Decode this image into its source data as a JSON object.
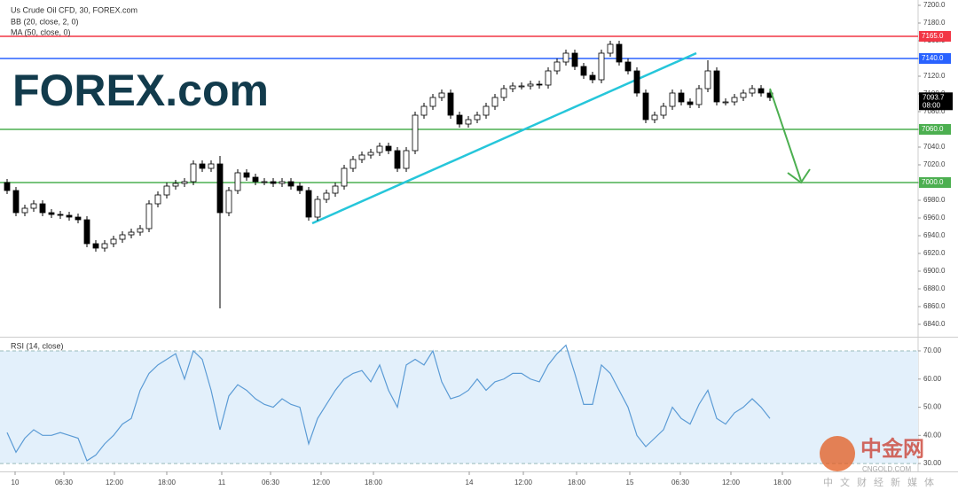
{
  "chart_data": [
    {
      "type": "candlestick",
      "title": "Us Crude Oil CFD, 30, FOREX.com",
      "subtitles": [
        "BB (20, close, 2, 0)",
        "MA (50, close, 0)"
      ],
      "logo": "FOREX.com",
      "up_color": "#ffffff",
      "down_color": "#000000",
      "open": [
        7000,
        6991,
        6966,
        6971,
        6976,
        6966,
        6964,
        6963,
        6961,
        6958,
        6931,
        6926,
        6931,
        6936,
        6941,
        6944,
        6948,
        6976,
        6986,
        6996,
        6999,
        7001,
        7021,
        7016,
        7021,
        6966,
        6991,
        7011,
        7006,
        7001,
        7001,
        6999,
        7001,
        6996,
        6991,
        6961,
        6981,
        6988,
        6996,
        7016,
        7026,
        7031,
        7034,
        7041,
        7036,
        7016,
        7036,
        7076,
        7086,
        7096,
        7101,
        7076,
        7066,
        7071,
        7076,
        7086,
        7096,
        7106,
        7109,
        7109,
        7111,
        7110,
        7126,
        7136,
        7146,
        7131,
        7121,
        7116,
        7146,
        7156,
        7136,
        7126,
        7101,
        7071,
        7076,
        7086,
        7101,
        7091,
        7088,
        7106,
        7126,
        7091,
        7091,
        7096,
        7101,
        7106,
        7101
      ],
      "high": [
        7004,
        6995,
        6975,
        6980,
        6980,
        6970,
        6968,
        6967,
        6965,
        6962,
        6935,
        6935,
        6940,
        6945,
        6948,
        6952,
        6980,
        6990,
        7000,
        7003,
        7005,
        7025,
        7025,
        7025,
        7030,
        6995,
        7015,
        7015,
        7010,
        7005,
        7005,
        7005,
        7005,
        7000,
        6995,
        6985,
        6992,
        7000,
        7020,
        7030,
        7035,
        7038,
        7045,
        7045,
        7040,
        7040,
        7080,
        7090,
        7100,
        7105,
        7105,
        7080,
        7075,
        7080,
        7090,
        7100,
        7110,
        7113,
        7113,
        7115,
        7115,
        7130,
        7140,
        7150,
        7150,
        7135,
        7125,
        7150,
        7160,
        7160,
        7140,
        7130,
        7105,
        7080,
        7090,
        7105,
        7105,
        7095,
        7110,
        7138,
        7130,
        7095,
        7100,
        7105,
        7110,
        7110,
        7105
      ],
      "low": [
        6987,
        6962,
        6962,
        6967,
        6962,
        6960,
        6959,
        6957,
        6954,
        6927,
        6922,
        6922,
        6927,
        6932,
        6937,
        6940,
        6944,
        6972,
        6982,
        6992,
        6995,
        6997,
        7012,
        7012,
        6858,
        6962,
        6987,
        7002,
        6997,
        6997,
        6995,
        6995,
        6992,
        6987,
        6957,
        6957,
        6977,
        6984,
        6992,
        7012,
        7022,
        7027,
        7030,
        7032,
        7012,
        7012,
        7032,
        7072,
        7082,
        7092,
        7072,
        7062,
        7062,
        7067,
        7072,
        7082,
        7092,
        7102,
        7105,
        7105,
        7106,
        7106,
        7122,
        7132,
        7127,
        7117,
        7112,
        7112,
        7142,
        7132,
        7122,
        7097,
        7067,
        7067,
        7072,
        7082,
        7087,
        7084,
        7084,
        7102,
        7087,
        7087,
        7087,
        7092,
        7097,
        7097,
        7092
      ],
      "close": [
        6991,
        6966,
        6971,
        6976,
        6966,
        6964,
        6963,
        6961,
        6958,
        6931,
        6926,
        6931,
        6936,
        6941,
        6944,
        6948,
        6976,
        6986,
        6996,
        6999,
        7001,
        7021,
        7016,
        7021,
        6966,
        6991,
        7011,
        7006,
        7001,
        7001,
        6999,
        7001,
        6996,
        6991,
        6961,
        6981,
        6988,
        6996,
        7016,
        7026,
        7031,
        7034,
        7041,
        7036,
        7016,
        7036,
        7076,
        7086,
        7096,
        7101,
        7076,
        7066,
        7071,
        7076,
        7086,
        7096,
        7106,
        7109,
        7109,
        7111,
        7110,
        7126,
        7136,
        7146,
        7131,
        7121,
        7116,
        7146,
        7156,
        7136,
        7126,
        7101,
        7071,
        7076,
        7086,
        7101,
        7091,
        7088,
        7106,
        7126,
        7091,
        7091,
        7096,
        7101,
        7106,
        7101,
        7096
      ],
      "ylim": [
        6826,
        7206
      ],
      "yticks": [
        {
          "value": 6840,
          "label": "6840.0"
        },
        {
          "value": 6860,
          "label": "6860.0"
        },
        {
          "value": 6880,
          "label": "6880.0"
        },
        {
          "value": 6900,
          "label": "6900.0"
        },
        {
          "value": 6920,
          "label": "6920.0"
        },
        {
          "value": 6940,
          "label": "6940.0"
        },
        {
          "value": 6960,
          "label": "6960.0"
        },
        {
          "value": 6980,
          "label": "6980.0"
        },
        {
          "value": 7000,
          "label": "7000.0"
        },
        {
          "value": 7020,
          "label": "7020.0"
        },
        {
          "value": 7040,
          "label": "7040.0"
        },
        {
          "value": 7060,
          "label": "7060.0"
        },
        {
          "value": 7080,
          "label": "7080.0"
        },
        {
          "value": 7100,
          "label": "7100.0"
        },
        {
          "value": 7120,
          "label": "7120.0"
        },
        {
          "value": 7140,
          "label": "7140.0"
        },
        {
          "value": 7160,
          "label": "7160.0"
        },
        {
          "value": 7180,
          "label": "7180.0"
        },
        {
          "value": 7200,
          "label": "7200.0"
        }
      ],
      "levels": [
        {
          "value": 7165,
          "label": "7165.0",
          "color": "#f23645"
        },
        {
          "value": 7140,
          "label": "7140.0",
          "color": "#2962ff"
        },
        {
          "value": 7060,
          "label": "7060.0",
          "color": "#4caf50"
        },
        {
          "value": 7000,
          "label": "7000.0",
          "color": "#4caf50"
        }
      ],
      "last_price": {
        "value": 7093.7,
        "label": "7093.7"
      },
      "last_time": "08:00",
      "trendline": {
        "x": [
          34.4,
          77.7
        ],
        "y": [
          6954,
          7146
        ],
        "color": "#26c6da"
      }
    },
    {
      "type": "line",
      "title": "RSI (14, close)",
      "color": "#5b9bd5",
      "values": [
        41,
        34,
        39,
        42,
        40,
        40,
        41,
        40,
        39,
        31,
        33,
        37,
        40,
        44,
        46,
        56,
        62,
        65,
        67,
        69,
        60,
        70,
        67,
        56,
        42,
        54,
        58,
        56,
        53,
        51,
        50,
        53,
        51,
        50,
        37,
        46,
        51,
        56,
        60,
        62,
        63,
        59,
        65,
        56,
        50,
        65,
        67,
        65,
        70,
        59,
        53,
        54,
        56,
        60,
        56,
        59,
        60,
        62,
        62,
        60,
        59,
        65,
        69,
        72,
        62,
        51,
        51,
        65,
        62,
        56,
        50,
        40,
        36,
        39,
        42,
        50,
        46,
        44,
        51,
        56,
        46,
        44,
        48,
        50,
        53,
        50,
        46
      ],
      "band": [
        30,
        70
      ],
      "ylim": [
        27.2,
        74.4
      ],
      "yticks": [
        {
          "value": 30,
          "label": "30.00"
        },
        {
          "value": 40,
          "label": "40.00"
        },
        {
          "value": 50,
          "label": "50.00"
        },
        {
          "value": 60,
          "label": "60.00"
        },
        {
          "value": 70,
          "label": "70.00"
        }
      ],
      "xlim": [
        -0.8,
        102.7
      ],
      "xticks": [
        {
          "value": 0.9,
          "label": "10"
        },
        {
          "value": 6.4,
          "label": "06:30"
        },
        {
          "value": 12.1,
          "label": "12:00"
        },
        {
          "value": 18,
          "label": "18:00"
        },
        {
          "value": 24.2,
          "label": "11"
        },
        {
          "value": 29.7,
          "label": "06:30"
        },
        {
          "value": 35.4,
          "label": "12:00"
        },
        {
          "value": 41.3,
          "label": "18:00"
        },
        {
          "value": 52.1,
          "label": "14"
        },
        {
          "value": 58.2,
          "label": "12:00"
        },
        {
          "value": 64.2,
          "label": "18:00"
        },
        {
          "value": 70.2,
          "label": "15"
        },
        {
          "value": 75.9,
          "label": "06:30"
        },
        {
          "value": 81.6,
          "label": "12:00"
        },
        {
          "value": 87.4,
          "label": "18:00"
        }
      ]
    }
  ],
  "watermark": {
    "name": "中金网",
    "url": "CNGOLD.COM",
    "slogan": "中文财经新媒体"
  }
}
